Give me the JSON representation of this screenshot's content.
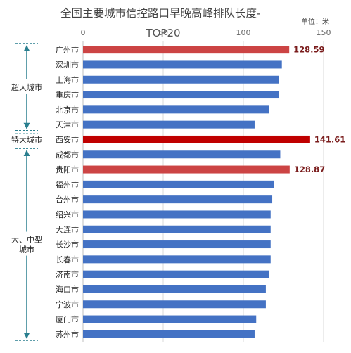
{
  "chart_data": {
    "type": "bar",
    "orientation": "horizontal",
    "title": "全国主要城市信控路口早晚高峰排队长度-",
    "subtitle": "TOP20",
    "unit_label": "单位：米",
    "xlim": [
      0,
      150
    ],
    "x_ticks": [
      "0",
      "50",
      "100",
      "150"
    ],
    "grid": true,
    "categories": [
      "广州市",
      "深圳市",
      "上海市",
      "重庆市",
      "北京市",
      "天津市",
      "西安市",
      "成都市",
      "贵阳市",
      "福州市",
      "台州市",
      "绍兴市",
      "大连市",
      "长沙市",
      "长春市",
      "济南市",
      "海口市",
      "宁波市",
      "厦门市",
      "苏州市"
    ],
    "values": [
      128.59,
      124,
      122,
      122,
      116,
      107,
      141.61,
      123,
      128.87,
      119,
      118,
      117,
      117,
      117,
      117,
      116,
      114,
      114,
      108,
      107
    ],
    "data_labels": [
      {
        "index": 0,
        "text": "128.59"
      },
      {
        "index": 6,
        "text": "141.61"
      },
      {
        "index": 8,
        "text": "128.87"
      }
    ],
    "bar_colors": [
      "#cc4444",
      "#4472c4",
      "#4472c4",
      "#4472c4",
      "#4472c4",
      "#4472c4",
      "#c00000",
      "#4472c4",
      "#cc4444",
      "#4472c4",
      "#4472c4",
      "#4472c4",
      "#4472c4",
      "#4472c4",
      "#4472c4",
      "#4472c4",
      "#4472c4",
      "#4472c4",
      "#4472c4",
      "#4472c4"
    ],
    "groups": [
      {
        "label": [
          "超大城市"
        ],
        "from": 0,
        "to": 5
      },
      {
        "label": [
          "特大城市"
        ],
        "from": 6,
        "to": 6
      },
      {
        "label": [
          "大、中型",
          "城市"
        ],
        "from": 7,
        "to": 19
      }
    ],
    "colors": {
      "bar": "#4472c4",
      "highlight": "#cc4444",
      "max": "#c00000",
      "arrow": "#2a7f8f",
      "grid": "#d9d9d9"
    }
  }
}
